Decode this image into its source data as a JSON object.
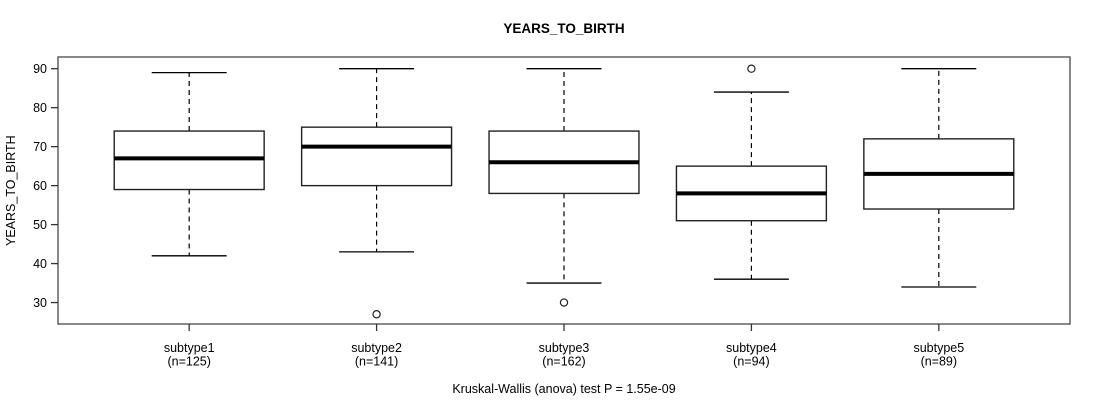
{
  "page": {
    "background_color": "#ffffff",
    "text_color": "#000000",
    "frame_color": "#555555",
    "box_stroke_color": "#222222",
    "median_color": "#000000"
  },
  "chart_data": {
    "type": "boxplot",
    "title": "YEARS_TO_BIRTH",
    "ylabel": "YEARS_TO_BIRTH",
    "xlabel": "",
    "caption": "Kruskal-Wallis (anova) test P = 1.55e-09",
    "ylim": [
      24.5,
      93
    ],
    "yticks": [
      30,
      40,
      50,
      60,
      70,
      80,
      90
    ],
    "grid": false,
    "legend": "none",
    "groups": [
      {
        "label": "subtype1",
        "sublabel": "(n=125)",
        "n": 125,
        "whisker_low": 42,
        "q1": 59,
        "median": 67,
        "q3": 74,
        "whisker_high": 89,
        "outliers": []
      },
      {
        "label": "subtype2",
        "sublabel": "(n=141)",
        "n": 141,
        "whisker_low": 43,
        "q1": 60,
        "median": 70,
        "q3": 75,
        "whisker_high": 90,
        "outliers": [
          27
        ]
      },
      {
        "label": "subtype3",
        "sublabel": "(n=162)",
        "n": 162,
        "whisker_low": 35,
        "q1": 58,
        "median": 66,
        "q3": 74,
        "whisker_high": 90,
        "outliers": [
          30
        ]
      },
      {
        "label": "subtype4",
        "sublabel": "(n=94)",
        "n": 94,
        "whisker_low": 36,
        "q1": 51,
        "median": 58,
        "q3": 65,
        "whisker_high": 84,
        "outliers": [
          90
        ]
      },
      {
        "label": "subtype5",
        "sublabel": "(n=89)",
        "n": 89,
        "whisker_low": 34,
        "q1": 54,
        "median": 63,
        "q3": 72,
        "whisker_high": 90,
        "outliers": []
      }
    ]
  }
}
